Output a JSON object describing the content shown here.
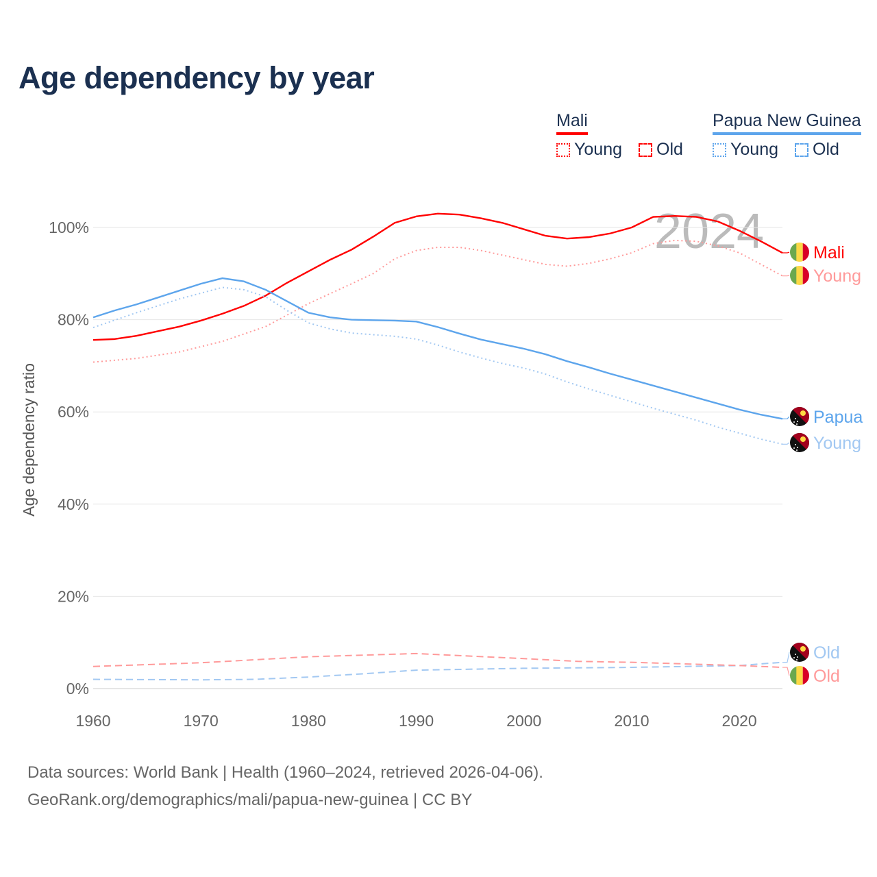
{
  "title": "Age dependency by year",
  "legend": {
    "groups": [
      {
        "name": "Mali",
        "color": "#ff0000",
        "young_label": "Young",
        "old_label": "Old"
      },
      {
        "name": "Papua New Guinea",
        "color": "#5da5ec",
        "young_label": "Young",
        "old_label": "Old"
      }
    ]
  },
  "year_watermark": "2024",
  "source_line1": "Data sources: World Bank | Health (1960–2024, retrieved 2026-04-06).",
  "source_line2": "GeoRank.org/demographics/mali/papua-new-guinea | CC BY",
  "chart_data": {
    "type": "line",
    "title": "Age dependency by year",
    "xlabel": "",
    "ylabel": "Age dependency ratio",
    "xlim": [
      1960,
      2024
    ],
    "ylim": [
      0,
      105
    ],
    "x_ticks": [
      "1960",
      "1970",
      "1980",
      "1990",
      "2000",
      "2010",
      "2020"
    ],
    "y_ticks": [
      "0%",
      "20%",
      "40%",
      "60%",
      "80%",
      "100%"
    ],
    "grid": true,
    "series": [
      {
        "name": "Mali",
        "end_label": "Mali",
        "country": "mali",
        "style": "solid",
        "color": "#ff0000",
        "x": [
          1960,
          1962,
          1964,
          1966,
          1968,
          1970,
          1972,
          1974,
          1976,
          1978,
          1980,
          1982,
          1984,
          1986,
          1988,
          1990,
          1992,
          1994,
          1996,
          1998,
          2000,
          2002,
          2004,
          2006,
          2008,
          2010,
          2012,
          2014,
          2016,
          2018,
          2020,
          2022,
          2024
        ],
        "y": [
          75.6,
          75.8,
          76.5,
          77.5,
          78.5,
          79.8,
          81.3,
          83,
          85.2,
          88,
          90.5,
          93,
          95.2,
          98,
          101,
          102.4,
          103,
          102.8,
          102,
          101,
          99.6,
          98.2,
          97.6,
          97.9,
          98.7,
          100,
          102.3,
          102.5,
          102.3,
          101.3,
          99.3,
          97,
          94.5
        ]
      },
      {
        "name": "Mali Young",
        "end_label": "Young",
        "country": "mali",
        "style": "dotted",
        "color": "#ff9a9a",
        "x": [
          1960,
          1964,
          1968,
          1972,
          1976,
          1980,
          1984,
          1986,
          1988,
          1990,
          1992,
          1994,
          1996,
          1998,
          2000,
          2002,
          2004,
          2006,
          2008,
          2010,
          2012,
          2014,
          2016,
          2018,
          2020,
          2022,
          2024
        ],
        "y": [
          70.8,
          71.6,
          73,
          75.3,
          78.5,
          83.5,
          87.8,
          90,
          93.2,
          95,
          95.7,
          95.7,
          95,
          94,
          93,
          92,
          91.6,
          92.2,
          93.2,
          94.5,
          96.5,
          97.2,
          97,
          96,
          94.5,
          92,
          89.5
        ]
      },
      {
        "name": "Papua New Guinea",
        "end_label": "Papua",
        "country": "png",
        "style": "solid",
        "color": "#5da5ec",
        "x": [
          1960,
          1962,
          1964,
          1966,
          1968,
          1970,
          1972,
          1974,
          1976,
          1978,
          1980,
          1982,
          1984,
          1986,
          1988,
          1990,
          1992,
          1994,
          1996,
          1998,
          2000,
          2002,
          2004,
          2006,
          2008,
          2010,
          2012,
          2014,
          2016,
          2018,
          2020,
          2022,
          2024
        ],
        "y": [
          80.5,
          82,
          83.3,
          84.8,
          86.3,
          87.8,
          89,
          88.3,
          86.5,
          84,
          81.5,
          80.5,
          80,
          79.9,
          79.8,
          79.6,
          78.4,
          77,
          75.7,
          74.7,
          73.7,
          72.5,
          71,
          69.7,
          68.3,
          67,
          65.7,
          64.4,
          63.1,
          61.8,
          60.5,
          59.4,
          58.5
        ]
      },
      {
        "name": "Papua New Guinea Young",
        "end_label": "Young",
        "country": "png",
        "style": "dotted",
        "color": "#a2c8f2",
        "x": [
          1960,
          1964,
          1968,
          1972,
          1974,
          1976,
          1978,
          1980,
          1982,
          1984,
          1988,
          1990,
          1992,
          1994,
          1996,
          1998,
          2000,
          2002,
          2004,
          2006,
          2008,
          2010,
          2012,
          2014,
          2016,
          2018,
          2020,
          2022,
          2024
        ],
        "y": [
          78.3,
          81.5,
          84.5,
          87,
          86.5,
          85,
          82,
          79.3,
          78,
          77.1,
          76.4,
          75.8,
          74.5,
          73,
          71.7,
          70.5,
          69.5,
          68.2,
          66.5,
          65,
          63.6,
          62.2,
          60.8,
          59.5,
          58.2,
          56.7,
          55.4,
          54.1,
          53
        ]
      },
      {
        "name": "Papua New Guinea Old",
        "end_label": "Old",
        "country": "png",
        "style": "dashed",
        "color": "#a2c8f2",
        "x": [
          1960,
          1970,
          1975,
          1980,
          1985,
          1990,
          2000,
          2010,
          2020,
          2024
        ],
        "y": [
          2.0,
          1.9,
          2.0,
          2.5,
          3.2,
          4.0,
          4.4,
          4.6,
          5.0,
          5.7
        ]
      },
      {
        "name": "Mali Old",
        "end_label": "Old",
        "country": "mali",
        "style": "dashed",
        "color": "#ff9a9a",
        "x": [
          1960,
          1970,
          1980,
          1990,
          2000,
          2005,
          2010,
          2020,
          2024
        ],
        "y": [
          4.8,
          5.6,
          6.9,
          7.6,
          6.5,
          5.9,
          5.7,
          5.0,
          4.6
        ]
      }
    ]
  }
}
